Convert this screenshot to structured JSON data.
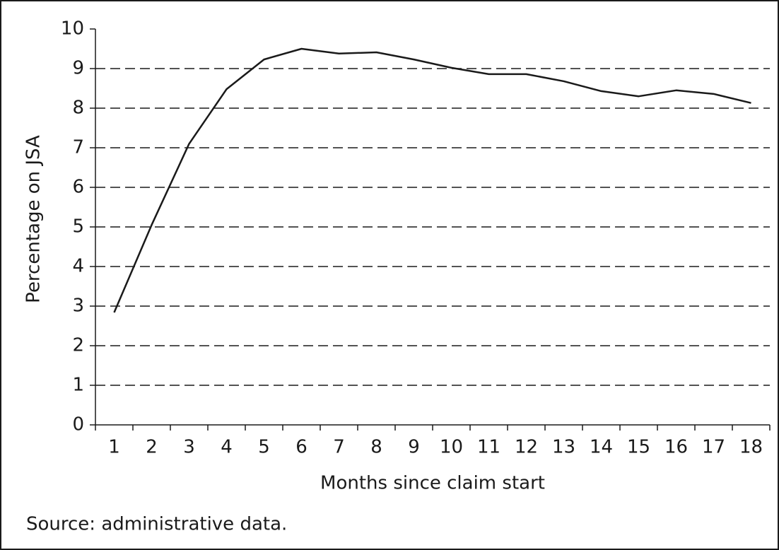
{
  "chart_data": {
    "type": "line",
    "categories": [
      "1",
      "2",
      "3",
      "4",
      "5",
      "6",
      "7",
      "8",
      "9",
      "10",
      "11",
      "12",
      "13",
      "14",
      "15",
      "16",
      "17",
      "18"
    ],
    "series": [
      {
        "name": "Percentage on JSA",
        "color": "#1a1a1a",
        "values": [
          2.84,
          5.05,
          7.1,
          8.48,
          9.23,
          9.5,
          9.38,
          9.41,
          9.23,
          9.02,
          8.86,
          8.86,
          8.68,
          8.43,
          8.3,
          8.45,
          8.36,
          8.13
        ]
      }
    ],
    "ylabel": "Percentage on JSA",
    "xlabel": "Months since claim start",
    "ylim": [
      0,
      10
    ],
    "yticks": [
      0,
      1,
      2,
      3,
      4,
      5,
      6,
      7,
      8,
      9,
      10
    ],
    "grid": true,
    "source": "Source: administrative data."
  }
}
